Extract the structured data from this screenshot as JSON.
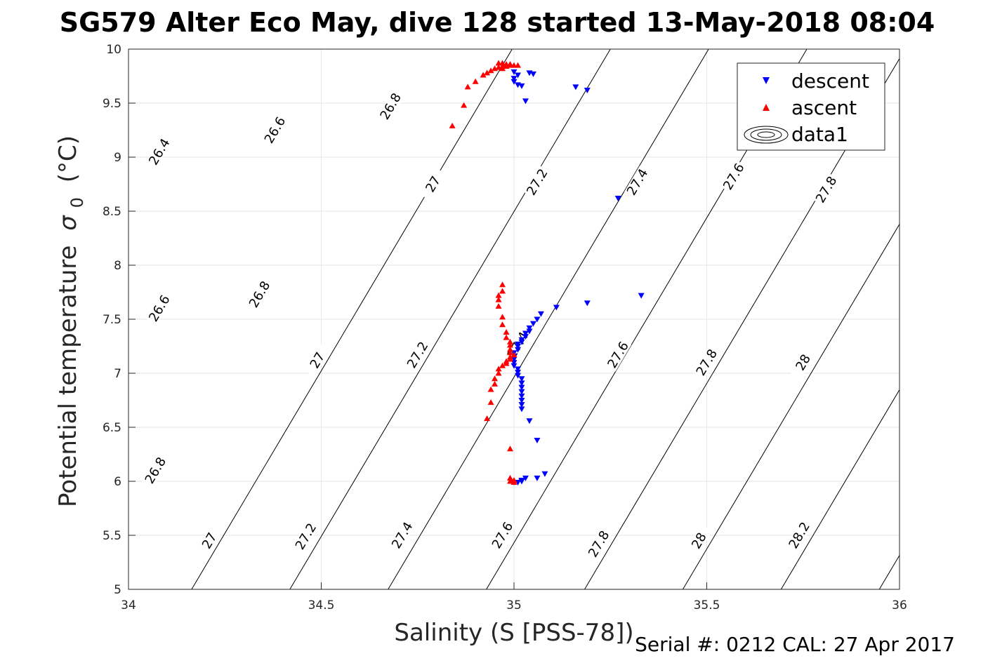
{
  "chart_data": {
    "type": "scatter",
    "title": "SG579 Alter Eco May, dive 128 started 13-May-2018 08:04",
    "xlabel": "Salinity (S [PSS-78])",
    "ylabel": "Potential temperature",
    "ylabel_symbol": "σ",
    "ylabel_subscript": "0",
    "ylabel_unit": "(°C)",
    "xlim": [
      34,
      36
    ],
    "ylim": [
      5,
      10
    ],
    "x_ticks": [
      "34",
      "34.5",
      "35",
      "35.5",
      "36"
    ],
    "y_ticks": [
      "5",
      "5.5",
      "6",
      "6.5",
      "7",
      "7.5",
      "8",
      "8.5",
      "9",
      "9.5",
      "10"
    ],
    "grid": true,
    "legend_position": "top-right",
    "legend": [
      "descent",
      "ascent",
      "data1"
    ],
    "colors": {
      "descent": "#0000ff",
      "ascent": "#ff0000",
      "contour": "#000000",
      "grid": "#e6e6e6"
    },
    "contours": [
      {
        "level": 26.4,
        "labels": [
          {
            "text": "26.4",
            "x": 34.08,
            "y": 9.05
          }
        ]
      },
      {
        "level": 26.6,
        "labels": [
          {
            "text": "26.6",
            "x": 34.38,
            "y": 9.25
          },
          {
            "text": "26.6",
            "x": 34.08,
            "y": 7.6
          }
        ]
      },
      {
        "level": 26.8,
        "labels": [
          {
            "text": "26.8",
            "x": 34.68,
            "y": 9.47
          },
          {
            "text": "26.8",
            "x": 34.34,
            "y": 7.73
          },
          {
            "text": "26.8",
            "x": 34.07,
            "y": 6.1
          }
        ]
      },
      {
        "level": 27.0,
        "labels": [
          {
            "text": "27",
            "x": 34.79,
            "y": 8.75
          },
          {
            "text": "27",
            "x": 34.49,
            "y": 7.12
          },
          {
            "text": "27",
            "x": 34.21,
            "y": 5.45
          }
        ]
      },
      {
        "level": 27.2,
        "labels": [
          {
            "text": "27.2",
            "x": 35.06,
            "y": 8.77
          },
          {
            "text": "27.2",
            "x": 34.75,
            "y": 7.17
          },
          {
            "text": "27.2",
            "x": 34.46,
            "y": 5.49
          }
        ]
      },
      {
        "level": 27.4,
        "labels": [
          {
            "text": "27.4",
            "x": 35.32,
            "y": 8.77
          },
          {
            "text": "27.4",
            "x": 35.01,
            "y": 7.26
          },
          {
            "text": "27.4",
            "x": 34.71,
            "y": 5.5
          }
        ]
      },
      {
        "level": 27.6,
        "labels": [
          {
            "text": "27.6",
            "x": 35.57,
            "y": 8.82
          },
          {
            "text": "27.6",
            "x": 35.27,
            "y": 7.17
          },
          {
            "text": "27.6",
            "x": 34.97,
            "y": 5.5
          }
        ]
      },
      {
        "level": 27.8,
        "labels": [
          {
            "text": "27.8",
            "x": 35.81,
            "y": 8.7
          },
          {
            "text": "27.8",
            "x": 35.5,
            "y": 7.1
          },
          {
            "text": "27.8",
            "x": 35.22,
            "y": 5.42
          }
        ]
      },
      {
        "level": 28.0,
        "labels": [
          {
            "text": "28",
            "x": 35.75,
            "y": 7.1
          },
          {
            "text": "28",
            "x": 35.48,
            "y": 5.45
          }
        ]
      },
      {
        "level": 28.2,
        "labels": [
          {
            "text": "28.2",
            "x": 35.74,
            "y": 5.5
          }
        ]
      }
    ],
    "series": [
      {
        "name": "descent",
        "marker": "triangle-down",
        "points": [
          [
            35.0,
            9.79
          ],
          [
            35.01,
            9.76
          ],
          [
            35.0,
            9.73
          ],
          [
            35.04,
            9.78
          ],
          [
            35.05,
            9.77
          ],
          [
            35.0,
            9.7
          ],
          [
            35.01,
            9.67
          ],
          [
            35.02,
            9.66
          ],
          [
            35.16,
            9.65
          ],
          [
            35.19,
            9.62
          ],
          [
            35.03,
            9.52
          ],
          [
            35.27,
            8.62
          ],
          [
            35.33,
            7.72
          ],
          [
            35.19,
            7.65
          ],
          [
            35.11,
            7.61
          ],
          [
            35.07,
            7.55
          ],
          [
            35.06,
            7.5
          ],
          [
            35.05,
            7.46
          ],
          [
            35.04,
            7.42
          ],
          [
            35.04,
            7.39
          ],
          [
            35.03,
            7.37
          ],
          [
            35.03,
            7.34
          ],
          [
            35.02,
            7.31
          ],
          [
            35.02,
            7.29
          ],
          [
            35.01,
            7.27
          ],
          [
            35.01,
            7.25
          ],
          [
            35.01,
            7.22
          ],
          [
            35.0,
            7.19
          ],
          [
            35.0,
            7.16
          ],
          [
            35.0,
            7.13
          ],
          [
            35.0,
            7.1
          ],
          [
            35.0,
            7.07
          ],
          [
            35.01,
            7.04
          ],
          [
            35.01,
            7.01
          ],
          [
            35.01,
            6.98
          ],
          [
            35.02,
            6.95
          ],
          [
            35.02,
            6.91
          ],
          [
            35.02,
            6.87
          ],
          [
            35.02,
            6.83
          ],
          [
            35.02,
            6.79
          ],
          [
            35.02,
            6.75
          ],
          [
            35.02,
            6.71
          ],
          [
            35.02,
            6.67
          ],
          [
            35.04,
            6.56
          ],
          [
            35.06,
            6.38
          ],
          [
            35.08,
            6.07
          ],
          [
            35.06,
            6.03
          ],
          [
            35.03,
            6.03
          ],
          [
            35.02,
            6.01
          ],
          [
            35.02,
            6.0
          ],
          [
            35.01,
            5.99
          ],
          [
            35.0,
            5.99
          ]
        ]
      },
      {
        "name": "ascent",
        "marker": "triangle-up",
        "points": [
          [
            34.96,
            9.87
          ],
          [
            34.97,
            9.87
          ],
          [
            34.98,
            9.86
          ],
          [
            34.99,
            9.86
          ],
          [
            34.99,
            9.85
          ],
          [
            35.0,
            9.85
          ],
          [
            35.01,
            9.85
          ],
          [
            34.97,
            9.84
          ],
          [
            34.98,
            9.84
          ],
          [
            34.96,
            9.83
          ],
          [
            34.95,
            9.82
          ],
          [
            34.97,
            9.82
          ],
          [
            34.94,
            9.8
          ],
          [
            34.93,
            9.78
          ],
          [
            34.92,
            9.76
          ],
          [
            34.9,
            9.7
          ],
          [
            34.88,
            9.65
          ],
          [
            34.87,
            9.48
          ],
          [
            34.84,
            9.29
          ],
          [
            34.97,
            7.82
          ],
          [
            34.97,
            7.76
          ],
          [
            34.96,
            7.72
          ],
          [
            34.96,
            7.68
          ],
          [
            34.96,
            7.62
          ],
          [
            34.97,
            7.52
          ],
          [
            34.97,
            7.45
          ],
          [
            34.98,
            7.38
          ],
          [
            34.98,
            7.33
          ],
          [
            34.99,
            7.29
          ],
          [
            34.99,
            7.26
          ],
          [
            34.99,
            7.22
          ],
          [
            34.99,
            7.19
          ],
          [
            35.0,
            7.17
          ],
          [
            34.99,
            7.15
          ],
          [
            34.99,
            7.13
          ],
          [
            34.98,
            7.11
          ],
          [
            34.98,
            7.09
          ],
          [
            34.97,
            7.07
          ],
          [
            34.96,
            7.04
          ],
          [
            34.96,
            7.0
          ],
          [
            34.95,
            6.95
          ],
          [
            34.95,
            6.9
          ],
          [
            34.94,
            6.85
          ],
          [
            34.94,
            6.73
          ],
          [
            34.93,
            6.58
          ],
          [
            34.99,
            6.3
          ],
          [
            34.99,
            6.03
          ],
          [
            35.0,
            6.01
          ],
          [
            34.99,
            6.0
          ],
          [
            35.0,
            5.99
          ]
        ]
      }
    ],
    "footer": "Serial #: 0212  CAL: 27 Apr 2017"
  }
}
